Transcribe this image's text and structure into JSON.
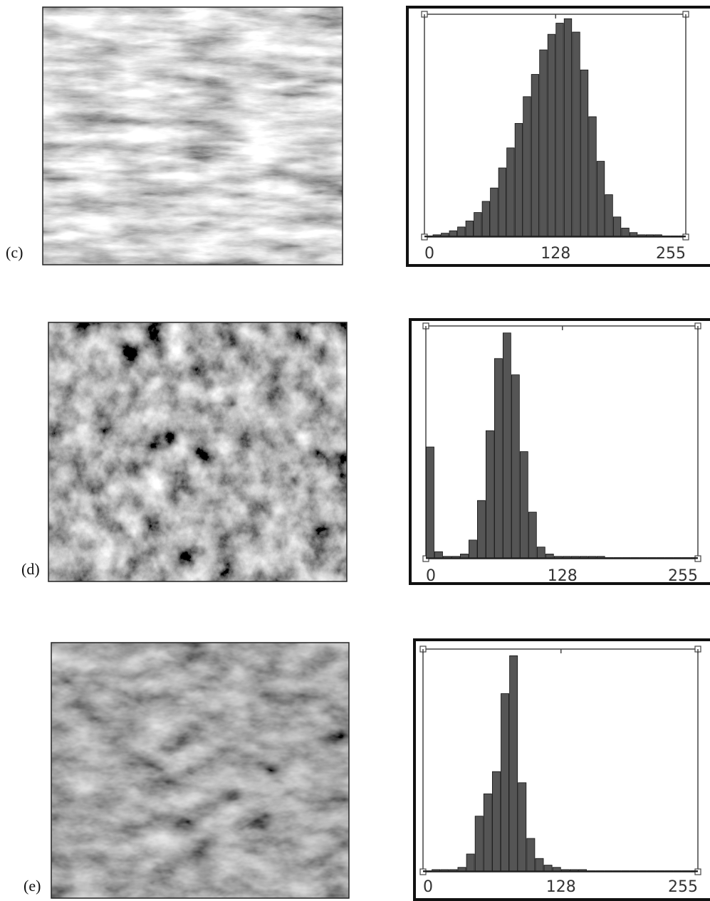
{
  "chart_data": [
    {
      "type": "histogram",
      "label": "(c)",
      "color": "#555555",
      "bins": [
        0,
        8,
        16,
        24,
        32,
        40,
        48,
        56,
        64,
        72,
        80,
        88,
        96,
        104,
        112,
        120,
        128,
        136,
        144,
        152,
        160,
        168,
        176,
        184,
        192,
        200,
        208,
        216,
        224,
        232,
        240,
        248,
        255
      ],
      "values": [
        0.5,
        1,
        1.7,
        2.8,
        4.5,
        7.2,
        11,
        16,
        22,
        31,
        40,
        51,
        63,
        73,
        84,
        91,
        96,
        98,
        92,
        75,
        54,
        34,
        19,
        9,
        4,
        2,
        1,
        1,
        1,
        0.5,
        0.5,
        0.5
      ],
      "xlim": [
        0,
        255
      ],
      "xticks": [
        0,
        128,
        255
      ],
      "ylim": [
        0,
        100
      ]
    },
    {
      "type": "histogram",
      "label": "(d)",
      "color": "#555555",
      "bins": [
        0,
        8,
        16,
        24,
        32,
        40,
        48,
        56,
        64,
        72,
        80,
        88,
        96,
        104,
        112,
        120,
        128,
        136,
        144,
        152,
        160,
        168,
        176,
        184,
        192,
        200,
        208,
        216,
        224,
        232,
        240,
        248,
        255
      ],
      "values": [
        48,
        3,
        1,
        1,
        2,
        8,
        25,
        55,
        86,
        97,
        79,
        46,
        20,
        5,
        2,
        1,
        1,
        1,
        1,
        1,
        1,
        0.5,
        0.5,
        0.5,
        0.5,
        0.5,
        0.5,
        0.5,
        0.5,
        0.5,
        0.5,
        0.5
      ],
      "xlim": [
        0,
        255
      ],
      "xticks": [
        0,
        128,
        255
      ],
      "ylim": [
        0,
        100
      ]
    },
    {
      "type": "histogram",
      "label": "(e)",
      "color": "#555555",
      "bins": [
        0,
        8,
        16,
        24,
        32,
        40,
        48,
        56,
        64,
        72,
        80,
        88,
        96,
        104,
        112,
        120,
        128,
        136,
        144,
        152,
        160,
        168,
        176,
        184,
        192,
        200,
        208,
        216,
        224,
        232,
        240,
        248,
        255
      ],
      "values": [
        0.5,
        1,
        1,
        1,
        2,
        8,
        25,
        35,
        45,
        80,
        97,
        40,
        15,
        6,
        3,
        2,
        1,
        1,
        1,
        0.5,
        0.5,
        0.5,
        0.5,
        0.5,
        0.5,
        0.5,
        0.5,
        0.5,
        0.5,
        0.5,
        0.5,
        0.5
      ],
      "xlim": [
        0,
        255
      ],
      "xticks": [
        0,
        128,
        255
      ],
      "ylim": [
        0,
        100
      ]
    }
  ]
}
